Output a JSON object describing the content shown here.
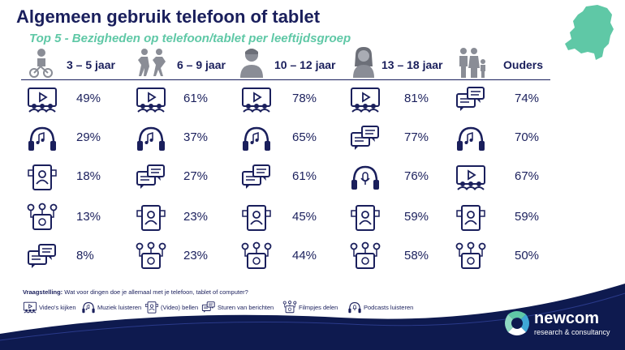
{
  "title": "Algemeen gebruik telefoon of tablet",
  "subtitle": "Top 5 - Bezigheden op telefoon/tablet per leeftijdsgroep",
  "columns": [
    {
      "label": "3 – 5 jaar",
      "icon": "toddler-on-bike-icon"
    },
    {
      "label": "6 – 9 jaar",
      "icon": "children-playing-icon"
    },
    {
      "label": "10 – 12 jaar",
      "icon": "boy-icon"
    },
    {
      "label": "13 – 18 jaar",
      "icon": "girl-icon"
    },
    {
      "label": "Ouders",
      "icon": "family-icon"
    }
  ],
  "rows": [
    [
      {
        "icon": "videos",
        "value": "49%"
      },
      {
        "icon": "videos",
        "value": "61%"
      },
      {
        "icon": "videos",
        "value": "78%"
      },
      {
        "icon": "videos",
        "value": "81%"
      },
      {
        "icon": "messages",
        "value": "74%"
      }
    ],
    [
      {
        "icon": "music",
        "value": "29%"
      },
      {
        "icon": "music",
        "value": "37%"
      },
      {
        "icon": "music",
        "value": "65%"
      },
      {
        "icon": "messages",
        "value": "77%"
      },
      {
        "icon": "music",
        "value": "70%"
      }
    ],
    [
      {
        "icon": "videocall",
        "value": "18%"
      },
      {
        "icon": "messages",
        "value": "27%"
      },
      {
        "icon": "messages",
        "value": "61%"
      },
      {
        "icon": "podcast",
        "value": "76%"
      },
      {
        "icon": "videos",
        "value": "67%"
      }
    ],
    [
      {
        "icon": "share",
        "value": "13%"
      },
      {
        "icon": "videocall",
        "value": "23%"
      },
      {
        "icon": "videocall",
        "value": "45%"
      },
      {
        "icon": "videocall",
        "value": "59%"
      },
      {
        "icon": "videocall",
        "value": "59%"
      }
    ],
    [
      {
        "icon": "messages",
        "value": "8%"
      },
      {
        "icon": "share",
        "value": "23%"
      },
      {
        "icon": "share",
        "value": "44%"
      },
      {
        "icon": "share",
        "value": "58%"
      },
      {
        "icon": "share",
        "value": "50%"
      }
    ]
  ],
  "question": {
    "label": "Vraagstelling:",
    "text": "Wat voor dingen doe je allemaal met je telefoon, tablet of computer?"
  },
  "legend": [
    {
      "icon": "videos",
      "label": "Video's kijken"
    },
    {
      "icon": "music",
      "label": "Muziek luisteren"
    },
    {
      "icon": "videocall",
      "label": "(Video) bellen"
    },
    {
      "icon": "messages",
      "label": "Sturen van berichten"
    },
    {
      "icon": "share",
      "label": "Filmpjes delen"
    },
    {
      "icon": "podcast",
      "label": "Podcasts luisteren"
    }
  ],
  "logo": {
    "name": "newcom",
    "tagline": "research & consultancy"
  },
  "colors": {
    "navy": "#1a1f5c",
    "teal": "#5fc8a6",
    "footer": "#0e1a4f"
  }
}
